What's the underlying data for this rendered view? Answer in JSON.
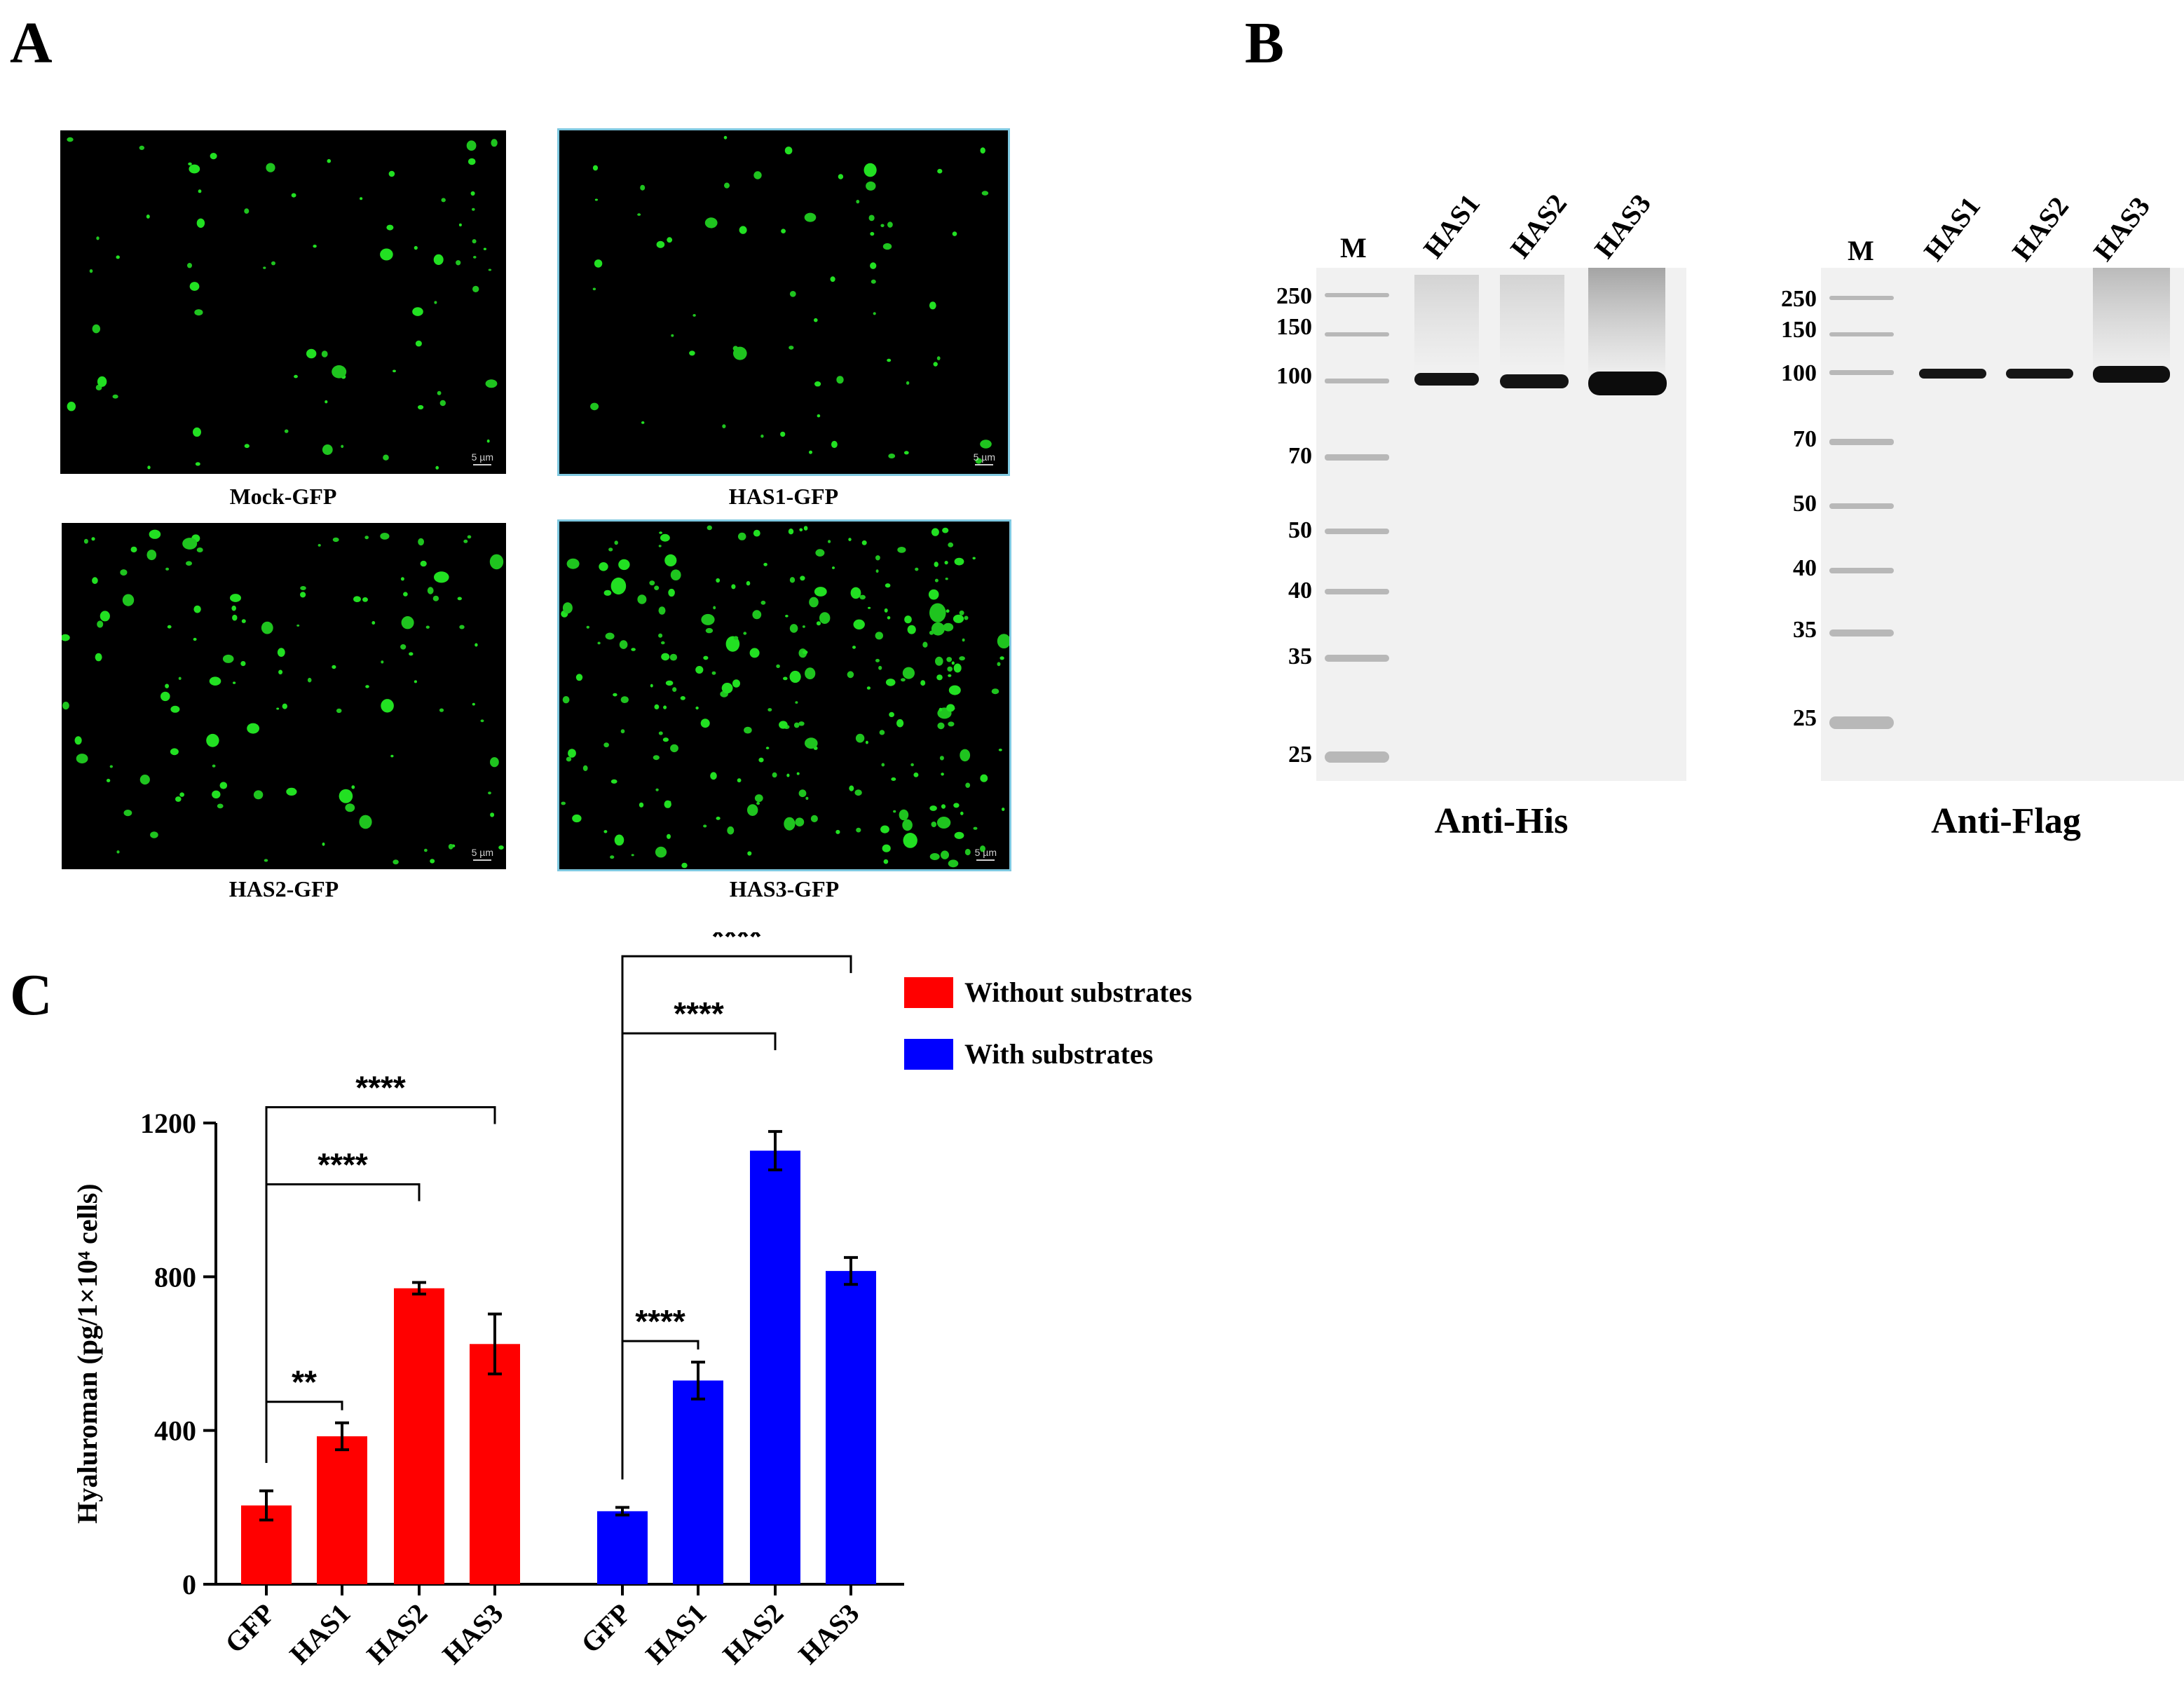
{
  "panels": {
    "a": "A",
    "b": "B",
    "c": "C"
  },
  "panel_a": {
    "images": [
      {
        "caption": "Mock-GFP",
        "scale": "5 µm"
      },
      {
        "caption": "HAS1-GFP",
        "scale": "5 µm"
      },
      {
        "caption": "HAS2-GFP",
        "scale": "5 µm"
      },
      {
        "caption": "HAS3-GFP",
        "scale": "5 µm"
      }
    ]
  },
  "panel_b": {
    "blots": [
      {
        "caption": "Anti-His",
        "marker_lane": "M",
        "lanes": [
          "HAS1",
          "HAS2",
          "HAS3"
        ],
        "mw_markers": [
          "250",
          "150",
          "100",
          "70",
          "50",
          "40",
          "35",
          "25"
        ]
      },
      {
        "caption": "Anti-Flag",
        "marker_lane": "M",
        "lanes": [
          "HAS1",
          "HAS2",
          "HAS3"
        ],
        "mw_markers": [
          "250",
          "150",
          "100",
          "70",
          "50",
          "40",
          "35",
          "25"
        ]
      }
    ]
  },
  "chart_data": {
    "type": "bar",
    "ylabel": "Hyaluroman (pg/1×10⁴ cells)",
    "ylim": [
      0,
      1200
    ],
    "yticks": [
      "0",
      "400",
      "800",
      "1200"
    ],
    "groups": [
      {
        "name": "Without substrates",
        "color": "#ff0000",
        "categories": [
          "GFP",
          "HAS1",
          "HAS2",
          "HAS3"
        ],
        "values": [
          205,
          385,
          770,
          625
        ],
        "errors": [
          38,
          35,
          15,
          78
        ],
        "significance": [
          {
            "from": "GFP",
            "to": "HAS1",
            "label": "**"
          },
          {
            "from": "GFP",
            "to": "HAS2",
            "label": "****"
          },
          {
            "from": "GFP",
            "to": "HAS3",
            "label": "****"
          }
        ]
      },
      {
        "name": "With substrates",
        "color": "#0000ff",
        "categories": [
          "GFP",
          "HAS1",
          "HAS2",
          "HAS3"
        ],
        "values": [
          190,
          530,
          1128,
          815
        ],
        "errors": [
          10,
          48,
          50,
          35
        ],
        "significance": [
          {
            "from": "GFP",
            "to": "HAS1",
            "label": "****"
          },
          {
            "from": "GFP",
            "to": "HAS2",
            "label": "****"
          },
          {
            "from": "GFP",
            "to": "HAS3",
            "label": "****"
          }
        ]
      }
    ]
  }
}
